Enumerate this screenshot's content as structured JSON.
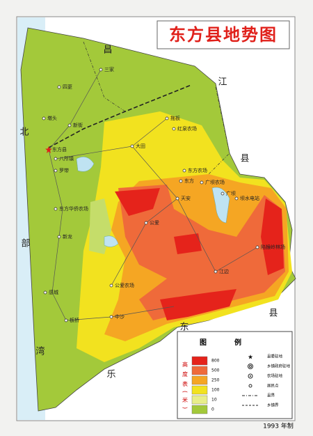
{
  "title": "东方县地势图",
  "neighbors": [
    "昌",
    "江",
    "县",
    "北",
    "部",
    "湾",
    "乐",
    "东",
    "县"
  ],
  "places": [
    "三家",
    "四更",
    "墩头",
    "新街",
    "东方县",
    "八所镇",
    "罗带",
    "东方华侨农场",
    "新龙",
    "感城",
    "板桥",
    "公爱农场",
    "中沙",
    "拖板",
    "红泉农场",
    "大田",
    "东方农场",
    "东方",
    "广坝农场",
    "天安",
    "公爱",
    "江边",
    "陷猴岭林场",
    "坝水电站",
    "广坝"
  ],
  "legend": {
    "title": "图例",
    "scale_label": "高度表(米)",
    "levels": [
      {
        "value": 800,
        "color": "#e5231b"
      },
      {
        "value": 500,
        "color": "#ef6a3a"
      },
      {
        "value": 250,
        "color": "#f5a623"
      },
      {
        "value": 100,
        "color": "#f2e21f"
      },
      {
        "value": 10,
        "color": "#e8ee8a"
      },
      {
        "value": 0,
        "color": "#a3c93a"
      }
    ],
    "symbols": [
      "县委驻地",
      "乡镇政府驻地",
      "农场驻地",
      "居民点",
      "县界",
      "乡镇界"
    ]
  },
  "footer": "1993 年制"
}
